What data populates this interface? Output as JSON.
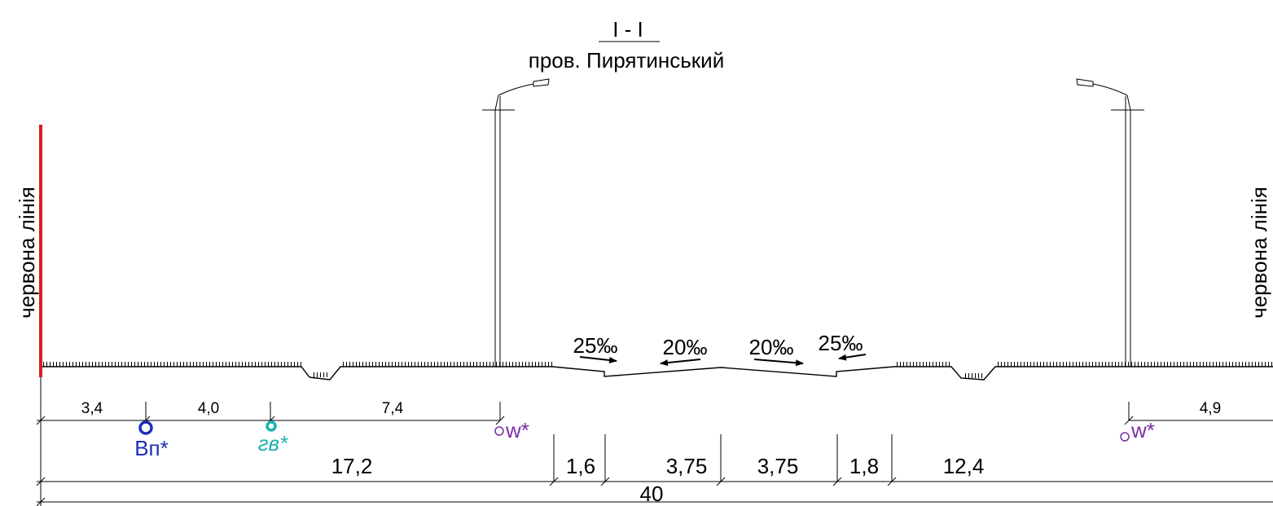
{
  "title": {
    "section": "I - I",
    "street": "пров. Пирятинський"
  },
  "side_labels": {
    "left": "червона лінія",
    "right": "червона лінія"
  },
  "slopes": [
    "25‰",
    "20‰",
    "20‰",
    "25‰"
  ],
  "utilities": {
    "vp": "Вп*",
    "gv": "гв*",
    "w_left": "w*",
    "w_right": "w*"
  },
  "dims_top": [
    "3,4",
    "4,0",
    "7,4",
    "4,9"
  ],
  "dims_mid": [
    "17,2",
    "1,6",
    "3,75",
    "3,75",
    "1,8",
    "12,4"
  ],
  "dim_total": "40",
  "colors": {
    "red_line": "#dd1b1b",
    "vp": "#1a2fb8",
    "gv": "#20b2b2",
    "w": "#7a2fa6",
    "ink": "#000000"
  }
}
